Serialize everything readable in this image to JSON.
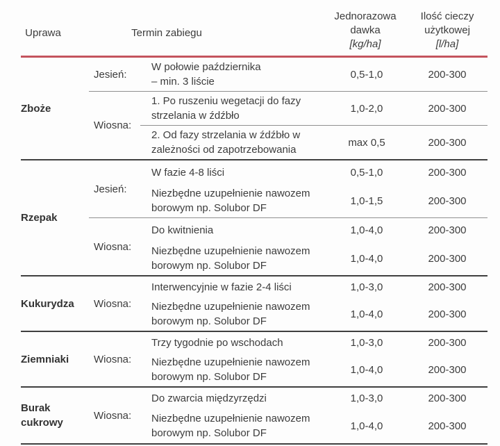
{
  "header": {
    "crop": "Uprawa",
    "term": "Termin zabiegu",
    "dose": [
      "Jednorazowa",
      "dawka",
      "[kg/ha]"
    ],
    "liquid": [
      "Ilość cieczy",
      "użytkowej",
      "[l/ha]"
    ]
  },
  "colors": {
    "accent_red": "#c4545e",
    "line_dark": "#3f3f3f",
    "line_gray": "#8f8f8f",
    "text": "#3c3c3c"
  },
  "sections": [
    {
      "crop": "Zboże",
      "groups": [
        {
          "season": "Jesień:",
          "rows": [
            {
              "termin": "W połowie października\n– min. 3 liście",
              "dose": "0,5-1,0",
              "liquid": "200-300"
            }
          ]
        },
        {
          "season": "Wiosna:",
          "rows": [
            {
              "termin": "1. Po ruszeniu wegetacji do fazy\nstrzelania w źdźbło",
              "dose": "1,0-2,0",
              "liquid": "200-300"
            },
            {
              "termin": "2. Od fazy strzelania w źdźbło w\nzależności od zapotrzebowania",
              "dose": "max 0,5",
              "liquid": "200-300"
            }
          ]
        }
      ]
    },
    {
      "crop": "Rzepak",
      "groups": [
        {
          "season": "Jesień:",
          "rows": [
            {
              "termin": "W fazie 4-8 liści",
              "dose": "0,5-1,0",
              "liquid": "200-300"
            },
            {
              "termin": "Niezbędne uzupełnienie nawozem\nborowym np. Solubor DF",
              "dose": "1,0-1,5",
              "liquid": "200-300"
            }
          ]
        },
        {
          "season": "Wiosna:",
          "rows": [
            {
              "termin": "Do kwitnienia",
              "dose": "1,0-4,0",
              "liquid": "200-300"
            },
            {
              "termin": "Niezbędne uzupełnienie nawozem\nborowym np. Solubor DF",
              "dose": "1,0-4,0",
              "liquid": "200-300"
            }
          ]
        }
      ]
    },
    {
      "crop": "Kukurydza",
      "groups": [
        {
          "season": "Wiosna:",
          "rows": [
            {
              "termin": "Interwencyjnie w fazie 2-4 liści",
              "dose": "1,0-3,0",
              "liquid": "200-300"
            },
            {
              "termin": "Niezbędne uzupełnienie nawozem\nborowym np. Solubor DF",
              "dose": "1,0-4,0",
              "liquid": "200-300"
            }
          ]
        }
      ]
    },
    {
      "crop": "Ziemniaki",
      "groups": [
        {
          "season": "Wiosna:",
          "rows": [
            {
              "termin": "Trzy tygodnie po wschodach",
              "dose": "1,0-3,0",
              "liquid": "200-300"
            },
            {
              "termin": "Niezbędne uzupełnienie nawozem\nborowym np. Solubor DF",
              "dose": "1,0-4,0",
              "liquid": "200-300"
            }
          ]
        }
      ]
    },
    {
      "crop": "Burak\ncukrowy",
      "groups": [
        {
          "season": "Wiosna:",
          "rows": [
            {
              "termin": "Do zwarcia międzyrzędzi",
              "dose": "1,0-3,0",
              "liquid": "200-300"
            },
            {
              "termin": "Niezbędne uzupełnienie nawozem\nborowym np. Solubor DF",
              "dose": "1,0-4,0",
              "liquid": "200-300"
            }
          ]
        }
      ]
    }
  ]
}
